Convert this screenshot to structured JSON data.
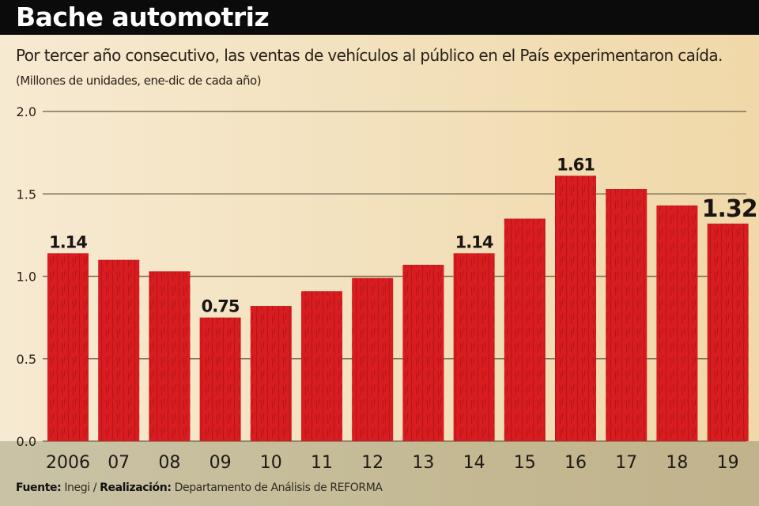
{
  "header": {
    "title": "Bache automotriz",
    "subtitle": "Por tercer año consecutivo, las ventas de vehículos al público en el País experimentaron caída.",
    "units_note": "(Millones de unidades, ene-dic de cada año)"
  },
  "footer": {
    "source_label": "Fuente:",
    "source_value": " Inegi / ",
    "credit_label": "Realización:",
    "credit_value": " Departamento de Análisis de REFORMA"
  },
  "colors": {
    "bar": "#d91c20",
    "bar_texture": "#6e0a0c",
    "gridline": "#7a7058",
    "header_bg": "#0b0b0b",
    "footer_bg": "#c4b993"
  },
  "chart_data": {
    "type": "bar",
    "title": "Bache automotriz",
    "subtitle": "Por tercer año consecutivo, las ventas de vehículos al público en el País experimentaron caída.",
    "xlabel": "",
    "ylabel": "Millones de unidades, ene-dic de cada año",
    "categories": [
      "2006",
      "07",
      "08",
      "09",
      "10",
      "11",
      "12",
      "13",
      "14",
      "15",
      "16",
      "17",
      "18",
      "19"
    ],
    "values": [
      1.14,
      1.1,
      1.03,
      0.75,
      0.82,
      0.91,
      0.99,
      1.07,
      1.14,
      1.35,
      1.61,
      1.53,
      1.43,
      1.32
    ],
    "data_labels": [
      {
        "index": 0,
        "text": "1.14"
      },
      {
        "index": 3,
        "text": "0.75"
      },
      {
        "index": 8,
        "text": "1.14"
      },
      {
        "index": 10,
        "text": "1.61"
      },
      {
        "index": 13,
        "text": "1.32",
        "emphasis": true
      }
    ],
    "yticks": [
      0.0,
      0.5,
      1.0,
      1.5,
      2.0
    ],
    "ytick_labels": [
      "0.0",
      "0.5",
      "1.0",
      "1.5",
      "2.0"
    ],
    "ylim": [
      0,
      2.0
    ],
    "grid": true,
    "legend": "none"
  }
}
